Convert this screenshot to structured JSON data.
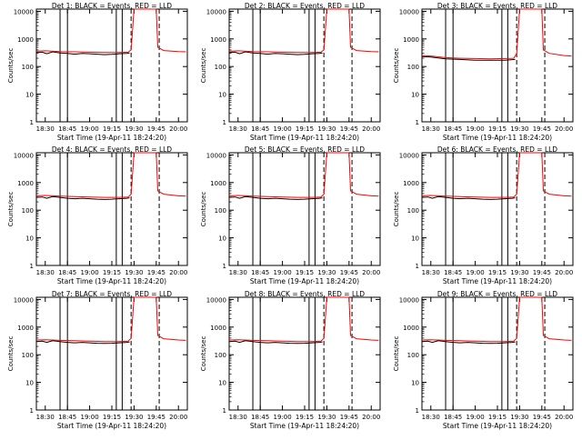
{
  "figure": {
    "ylabel": "Counts/sec",
    "xlabel": "Start Time (19-Apr-11 18:24:20)",
    "line_colors": {
      "events": "#000000",
      "lld": "#ff0000"
    }
  },
  "chart_data": [
    {
      "type": "line",
      "title": "Det 1: BLACK = Events, RED = LLD",
      "ylabel": "Counts/sec",
      "xlabel": "Start Time (19-Apr-11 18:24:20)",
      "y_scale": "log",
      "ylim": [
        1,
        12000
      ],
      "xlim": [
        "18:24",
        "20:06"
      ],
      "x_ticks": [
        "18:30",
        "18:45",
        "19:00",
        "19:15",
        "19:30",
        "19:45",
        "20:00"
      ],
      "y_ticks": [
        "1",
        "10",
        "100",
        "1000",
        "10000"
      ],
      "solid_markers": [
        "18:40",
        "18:45",
        "19:18",
        "19:22"
      ],
      "dashed_markers": [
        "19:28",
        "19:47"
      ],
      "series": [
        {
          "name": "Events",
          "color": "#000000",
          "x": [
            "18:24",
            "18:28",
            "18:31",
            "18:35",
            "18:40",
            "18:45",
            "18:50",
            "18:55",
            "19:00",
            "19:05",
            "19:10",
            "19:15",
            "19:20",
            "19:25",
            "19:27"
          ],
          "y": [
            320,
            330,
            290,
            340,
            310,
            300,
            280,
            300,
            290,
            280,
            270,
            275,
            290,
            300,
            310
          ]
        },
        {
          "name": "LLD",
          "color": "#ff0000",
          "x": [
            "18:24",
            "18:30",
            "18:40",
            "18:50",
            "19:00",
            "19:10",
            "19:20",
            "19:26",
            "19:28",
            "19:30",
            "19:45",
            "19:46",
            "19:50",
            "20:00",
            "20:05"
          ],
          "y": [
            360,
            370,
            350,
            340,
            330,
            320,
            320,
            330,
            400,
            12000,
            12000,
            500,
            380,
            350,
            340
          ]
        }
      ]
    },
    {
      "type": "line",
      "title": "Det 2: BLACK = Events, RED = LLD",
      "ylabel": "Counts/sec",
      "xlabel": "Start Time (19-Apr-11 18:24:20)",
      "y_scale": "log",
      "ylim": [
        1,
        12000
      ],
      "xlim": [
        "18:24",
        "20:06"
      ],
      "x_ticks": [
        "18:30",
        "18:45",
        "19:00",
        "19:15",
        "19:30",
        "19:45",
        "20:00"
      ],
      "y_ticks": [
        "1",
        "10",
        "100",
        "1000",
        "10000"
      ],
      "solid_markers": [
        "18:40",
        "18:45",
        "19:18",
        "19:22"
      ],
      "dashed_markers": [
        "19:28",
        "19:47"
      ],
      "series": [
        {
          "name": "Events",
          "color": "#000000",
          "x": [
            "18:24",
            "18:28",
            "18:31",
            "18:35",
            "18:40",
            "18:45",
            "18:50",
            "18:55",
            "19:00",
            "19:05",
            "19:10",
            "19:15",
            "19:20",
            "19:25",
            "19:27"
          ],
          "y": [
            320,
            330,
            290,
            340,
            310,
            300,
            280,
            300,
            290,
            280,
            270,
            275,
            290,
            300,
            310
          ]
        },
        {
          "name": "LLD",
          "color": "#ff0000",
          "x": [
            "18:24",
            "18:30",
            "18:40",
            "18:50",
            "19:00",
            "19:10",
            "19:20",
            "19:26",
            "19:28",
            "19:30",
            "19:45",
            "19:46",
            "19:50",
            "20:00",
            "20:05"
          ],
          "y": [
            360,
            370,
            350,
            340,
            330,
            320,
            320,
            330,
            400,
            12000,
            12000,
            500,
            380,
            350,
            340
          ]
        }
      ]
    },
    {
      "type": "line",
      "title": "Det 3: BLACK = Events, RED = LLD",
      "ylabel": "Counts/sec",
      "xlabel": "Start Time (19-Apr-11 18:24:20)",
      "y_scale": "log",
      "ylim": [
        1,
        12000
      ],
      "xlim": [
        "18:24",
        "20:06"
      ],
      "x_ticks": [
        "18:30",
        "18:45",
        "19:00",
        "19:15",
        "19:30",
        "19:45",
        "20:00"
      ],
      "y_ticks": [
        "1",
        "10",
        "100",
        "1000",
        "10000"
      ],
      "solid_markers": [
        "18:40",
        "18:45",
        "19:18",
        "19:22"
      ],
      "dashed_markers": [
        "19:28",
        "19:47"
      ],
      "series": [
        {
          "name": "Events",
          "color": "#000000",
          "x": [
            "18:24",
            "18:30",
            "18:40",
            "18:50",
            "19:00",
            "19:10",
            "19:20",
            "19:27"
          ],
          "y": [
            230,
            220,
            190,
            180,
            170,
            170,
            170,
            180
          ]
        },
        {
          "name": "LLD",
          "color": "#ff0000",
          "x": [
            "18:24",
            "18:30",
            "18:40",
            "18:50",
            "19:00",
            "19:10",
            "19:20",
            "19:26",
            "19:28",
            "19:30",
            "19:45",
            "19:46",
            "19:50",
            "20:00",
            "20:05"
          ],
          "y": [
            250,
            240,
            210,
            200,
            195,
            190,
            195,
            200,
            300,
            12000,
            12000,
            400,
            300,
            250,
            240
          ]
        }
      ]
    },
    {
      "type": "line",
      "title": "Det 4: BLACK = Events, RED = LLD",
      "ylabel": "Counts/sec",
      "xlabel": "Start Time (19-Apr-11 18:24:20)",
      "y_scale": "log",
      "ylim": [
        1,
        12000
      ],
      "xlim": [
        "18:24",
        "20:06"
      ],
      "x_ticks": [
        "18:30",
        "18:45",
        "19:00",
        "19:15",
        "19:30",
        "19:45",
        "20:00"
      ],
      "y_ticks": [
        "1",
        "10",
        "100",
        "1000",
        "10000"
      ],
      "solid_markers": [
        "18:40",
        "18:45",
        "19:18",
        "19:22"
      ],
      "dashed_markers": [
        "19:28",
        "19:47"
      ],
      "series": [
        {
          "name": "Events",
          "color": "#000000",
          "x": [
            "18:24",
            "18:28",
            "18:31",
            "18:35",
            "18:40",
            "18:45",
            "18:50",
            "18:55",
            "19:00",
            "19:05",
            "19:10",
            "19:15",
            "19:20",
            "19:25",
            "19:27"
          ],
          "y": [
            290,
            300,
            270,
            310,
            290,
            270,
            260,
            270,
            260,
            250,
            245,
            250,
            260,
            270,
            280
          ]
        },
        {
          "name": "LLD",
          "color": "#ff0000",
          "x": [
            "18:24",
            "18:30",
            "18:40",
            "18:50",
            "19:00",
            "19:10",
            "19:20",
            "19:26",
            "19:28",
            "19:30",
            "19:45",
            "19:46",
            "19:50",
            "20:00",
            "20:05"
          ],
          "y": [
            330,
            340,
            320,
            310,
            300,
            290,
            290,
            300,
            380,
            12000,
            12000,
            500,
            380,
            330,
            320
          ]
        }
      ]
    },
    {
      "type": "line",
      "title": "Det 5: BLACK = Events, RED = LLD",
      "ylabel": "Counts/sec",
      "xlabel": "Start Time (19-Apr-11 18:24:20)",
      "y_scale": "log",
      "ylim": [
        1,
        12000
      ],
      "xlim": [
        "18:24",
        "20:06"
      ],
      "x_ticks": [
        "18:30",
        "18:45",
        "19:00",
        "19:15",
        "19:30",
        "19:45",
        "20:00"
      ],
      "y_ticks": [
        "1",
        "10",
        "100",
        "1000",
        "10000"
      ],
      "solid_markers": [
        "18:40",
        "18:45",
        "19:18",
        "19:22"
      ],
      "dashed_markers": [
        "19:28",
        "19:47"
      ],
      "series": [
        {
          "name": "Events",
          "color": "#000000",
          "x": [
            "18:24",
            "18:28",
            "18:31",
            "18:35",
            "18:40",
            "18:45",
            "18:50",
            "18:55",
            "19:00",
            "19:05",
            "19:10",
            "19:15",
            "19:20",
            "19:25",
            "19:27"
          ],
          "y": [
            290,
            300,
            270,
            310,
            290,
            270,
            260,
            270,
            260,
            250,
            245,
            250,
            260,
            270,
            280
          ]
        },
        {
          "name": "LLD",
          "color": "#ff0000",
          "x": [
            "18:24",
            "18:30",
            "18:40",
            "18:50",
            "19:00",
            "19:10",
            "19:20",
            "19:26",
            "19:28",
            "19:30",
            "19:45",
            "19:46",
            "19:50",
            "20:00",
            "20:05"
          ],
          "y": [
            330,
            340,
            320,
            310,
            300,
            290,
            290,
            300,
            380,
            12000,
            12000,
            500,
            380,
            330,
            320
          ]
        }
      ]
    },
    {
      "type": "line",
      "title": "Det 6: BLACK = Events, RED = LLD",
      "ylabel": "Counts/sec",
      "xlabel": "Start Time (19-Apr-11 18:24:20)",
      "y_scale": "log",
      "ylim": [
        1,
        12000
      ],
      "xlim": [
        "18:24",
        "20:06"
      ],
      "x_ticks": [
        "18:30",
        "18:45",
        "19:00",
        "19:15",
        "19:30",
        "19:45",
        "20:00"
      ],
      "y_ticks": [
        "1",
        "10",
        "100",
        "1000",
        "10000"
      ],
      "solid_markers": [
        "18:40",
        "18:45",
        "19:18",
        "19:22"
      ],
      "dashed_markers": [
        "19:28",
        "19:47"
      ],
      "series": [
        {
          "name": "Events",
          "color": "#000000",
          "x": [
            "18:24",
            "18:28",
            "18:31",
            "18:35",
            "18:40",
            "18:45",
            "18:50",
            "18:55",
            "19:00",
            "19:05",
            "19:10",
            "19:15",
            "19:20",
            "19:25",
            "19:27"
          ],
          "y": [
            290,
            300,
            270,
            310,
            290,
            270,
            260,
            270,
            260,
            250,
            245,
            250,
            260,
            270,
            280
          ]
        },
        {
          "name": "LLD",
          "color": "#ff0000",
          "x": [
            "18:24",
            "18:30",
            "18:40",
            "18:50",
            "19:00",
            "19:10",
            "19:20",
            "19:26",
            "19:28",
            "19:30",
            "19:45",
            "19:46",
            "19:50",
            "20:00",
            "20:05"
          ],
          "y": [
            330,
            340,
            320,
            310,
            300,
            290,
            290,
            300,
            380,
            12000,
            12000,
            500,
            380,
            330,
            320
          ]
        }
      ]
    },
    {
      "type": "line",
      "title": "Det 7: BLACK = Events, RED = LLD",
      "ylabel": "Counts/sec",
      "xlabel": "Start Time (19-Apr-11 18:24:20)",
      "y_scale": "log",
      "ylim": [
        1,
        12000
      ],
      "xlim": [
        "18:24",
        "20:06"
      ],
      "x_ticks": [
        "18:30",
        "18:45",
        "19:00",
        "19:15",
        "19:30",
        "19:45",
        "20:00"
      ],
      "y_ticks": [
        "1",
        "10",
        "100",
        "1000",
        "10000"
      ],
      "solid_markers": [
        "18:40",
        "18:45",
        "19:18",
        "19:22"
      ],
      "dashed_markers": [
        "19:28",
        "19:47"
      ],
      "series": [
        {
          "name": "Events",
          "color": "#000000",
          "x": [
            "18:24",
            "18:28",
            "18:31",
            "18:35",
            "18:40",
            "18:45",
            "18:50",
            "18:55",
            "19:00",
            "19:05",
            "19:10",
            "19:15",
            "19:20",
            "19:25",
            "19:27"
          ],
          "y": [
            300,
            310,
            280,
            320,
            300,
            280,
            270,
            280,
            270,
            260,
            255,
            260,
            270,
            280,
            290
          ]
        },
        {
          "name": "LLD",
          "color": "#ff0000",
          "x": [
            "18:24",
            "18:30",
            "18:40",
            "18:50",
            "19:00",
            "19:10",
            "19:20",
            "19:26",
            "19:28",
            "19:30",
            "19:45",
            "19:46",
            "19:50",
            "20:00",
            "20:05"
          ],
          "y": [
            340,
            350,
            330,
            320,
            310,
            300,
            300,
            310,
            390,
            12000,
            12000,
            500,
            380,
            340,
            330
          ]
        }
      ]
    },
    {
      "type": "line",
      "title": "Det 8: BLACK = Events, RED = LLD",
      "ylabel": "Counts/sec",
      "xlabel": "Start Time (19-Apr-11 18:24:20)",
      "y_scale": "log",
      "ylim": [
        1,
        12000
      ],
      "xlim": [
        "18:24",
        "20:06"
      ],
      "x_ticks": [
        "18:30",
        "18:45",
        "19:00",
        "19:15",
        "19:30",
        "19:45",
        "20:00"
      ],
      "y_ticks": [
        "1",
        "10",
        "100",
        "1000",
        "10000"
      ],
      "solid_markers": [
        "18:40",
        "18:45",
        "19:18",
        "19:22"
      ],
      "dashed_markers": [
        "19:28",
        "19:47"
      ],
      "series": [
        {
          "name": "Events",
          "color": "#000000",
          "x": [
            "18:24",
            "18:28",
            "18:31",
            "18:35",
            "18:40",
            "18:45",
            "18:50",
            "18:55",
            "19:00",
            "19:05",
            "19:10",
            "19:15",
            "19:20",
            "19:25",
            "19:27"
          ],
          "y": [
            300,
            310,
            280,
            320,
            300,
            280,
            270,
            280,
            270,
            260,
            255,
            260,
            270,
            280,
            290
          ]
        },
        {
          "name": "LLD",
          "color": "#ff0000",
          "x": [
            "18:24",
            "18:30",
            "18:40",
            "18:50",
            "19:00",
            "19:10",
            "19:20",
            "19:26",
            "19:28",
            "19:30",
            "19:45",
            "19:46",
            "19:50",
            "20:00",
            "20:05"
          ],
          "y": [
            340,
            350,
            330,
            320,
            310,
            300,
            300,
            310,
            390,
            12000,
            12000,
            500,
            380,
            340,
            330
          ]
        }
      ]
    },
    {
      "type": "line",
      "title": "Det 9: BLACK = Events, RED = LLD",
      "ylabel": "Counts/sec",
      "xlabel": "Start Time (19-Apr-11 18:24:20)",
      "y_scale": "log",
      "ylim": [
        1,
        12000
      ],
      "xlim": [
        "18:24",
        "20:06"
      ],
      "x_ticks": [
        "18:30",
        "18:45",
        "19:00",
        "19:15",
        "19:30",
        "19:45",
        "20:00"
      ],
      "y_ticks": [
        "1",
        "10",
        "100",
        "1000",
        "10000"
      ],
      "solid_markers": [
        "18:40",
        "18:45",
        "19:18",
        "19:22"
      ],
      "dashed_markers": [
        "19:28",
        "19:47"
      ],
      "series": [
        {
          "name": "Events",
          "color": "#000000",
          "x": [
            "18:24",
            "18:28",
            "18:31",
            "18:35",
            "18:40",
            "18:45",
            "18:50",
            "18:55",
            "19:00",
            "19:05",
            "19:10",
            "19:15",
            "19:20",
            "19:25",
            "19:27"
          ],
          "y": [
            300,
            310,
            280,
            320,
            300,
            280,
            270,
            280,
            270,
            260,
            255,
            260,
            270,
            280,
            290
          ]
        },
        {
          "name": "LLD",
          "color": "#ff0000",
          "x": [
            "18:24",
            "18:30",
            "18:40",
            "18:50",
            "19:00",
            "19:10",
            "19:20",
            "19:26",
            "19:28",
            "19:30",
            "19:45",
            "19:46",
            "19:50",
            "20:00",
            "20:05"
          ],
          "y": [
            340,
            350,
            330,
            320,
            310,
            300,
            300,
            310,
            390,
            12000,
            12000,
            500,
            380,
            340,
            330
          ]
        }
      ]
    }
  ]
}
